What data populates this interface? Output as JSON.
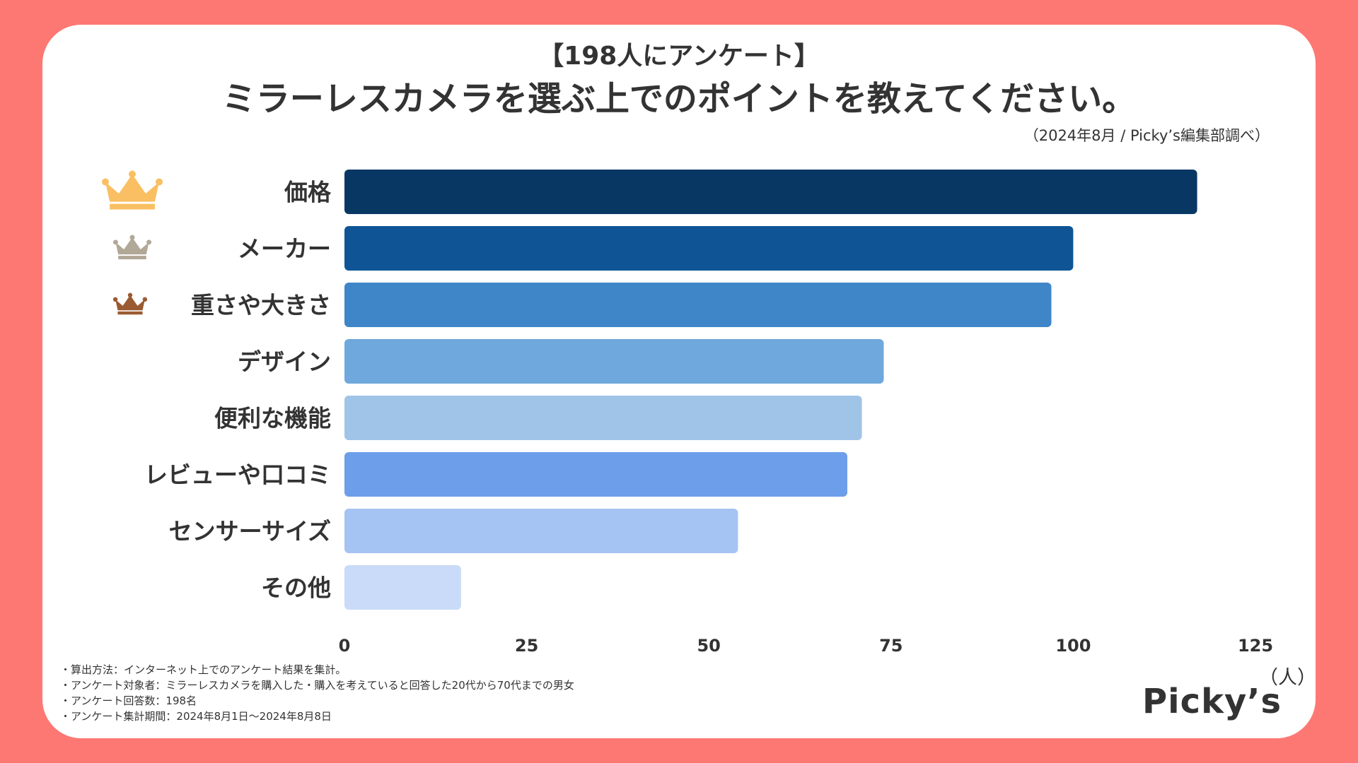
{
  "header": {
    "subtitle": "【198人にアンケート】",
    "title": "ミラーレスカメラを選ぶ上でのポイントを教えてください。",
    "source": "（2024年8月 / Picky’s編集部調べ）"
  },
  "colors": {
    "background": "#fe7873",
    "card": "#ffffff",
    "text": "#333333",
    "bars": [
      "#083763",
      "#0f5596",
      "#3e86c8",
      "#6ea8dc",
      "#9fc4e8",
      "#6c9ee9",
      "#a5c3f3",
      "#c9dbf8"
    ],
    "crowns": [
      "#f9bf62",
      "#b2a897",
      "#9a5b32"
    ]
  },
  "chart_data": {
    "type": "bar",
    "orientation": "horizontal",
    "title": "ミラーレスカメラを選ぶ上でのポイントを教えてください。",
    "categories": [
      "価格",
      "メーカー",
      "重さや大きさ",
      "デザイン",
      "便利な機能",
      "レビューや口コミ",
      "センサーサイズ",
      "その他"
    ],
    "values": [
      117,
      100,
      97,
      74,
      71,
      69,
      54,
      16
    ],
    "xlim": [
      0,
      125
    ],
    "xticks": [
      "0",
      "25",
      "50",
      "75",
      "100",
      "125"
    ],
    "xlabel": "（人）",
    "ylabel": "",
    "grid": false,
    "legend": "none",
    "rank_icons": [
      "gold-crown",
      "silver-crown",
      "bronze-crown"
    ]
  },
  "notes": [
    "・算出方法：インターネット上でのアンケート結果を集計。",
    "・アンケート対象者：ミラーレスカメラを購入した・購入を考えていると回答した20代から70代までの男女",
    "・アンケート回答数：198名",
    "・アンケート集計期間：2024年8月1日〜2024年8月8日"
  ],
  "logo": "Picky’s"
}
